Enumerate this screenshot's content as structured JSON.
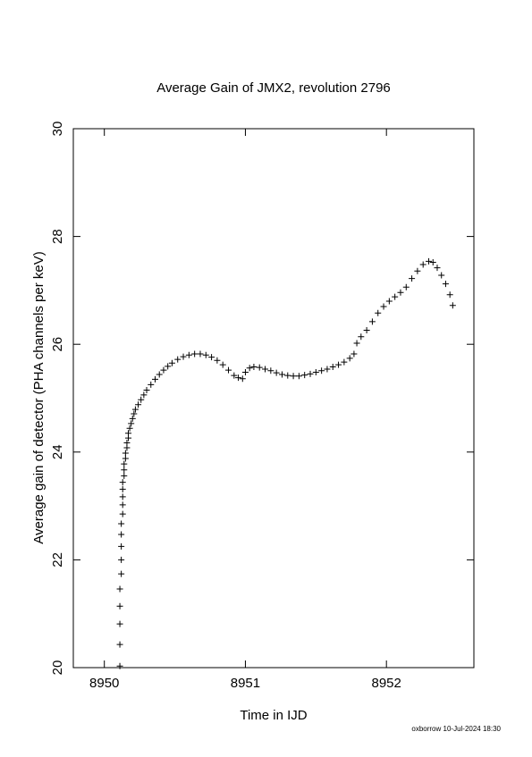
{
  "chart_data": {
    "type": "scatter",
    "title": "Average Gain of JMX2, revolution 2796",
    "x_label": "Time in IJD",
    "y_label": "Average gain of detector (PHA channels per keV)",
    "footer": "oxborrow 10-Jul-2024 18:30",
    "xlim": [
      8949.78,
      8952.62
    ],
    "ylim": [
      20,
      30
    ],
    "xticks": [
      8950,
      8951,
      8952
    ],
    "yticks": [
      20,
      22,
      24,
      26,
      28,
      30
    ],
    "marker": "+",
    "series": [
      {
        "name": "JMX2",
        "color": "#000000",
        "x": [
          8950.11,
          8950.11,
          8950.11,
          8950.11,
          8950.11,
          8950.12,
          8950.12,
          8950.12,
          8950.12,
          8950.12,
          8950.13,
          8950.13,
          8950.13,
          8950.13,
          8950.13,
          8950.14,
          8950.14,
          8950.14,
          8950.15,
          8950.15,
          8950.16,
          8950.16,
          8950.17,
          8950.17,
          8950.18,
          8950.19,
          8950.2,
          8950.21,
          8950.22,
          8950.24,
          8950.26,
          8950.28,
          8950.3,
          8950.33,
          8950.36,
          8950.39,
          8950.42,
          8950.45,
          8950.48,
          8950.52,
          8950.56,
          8950.6,
          8950.64,
          8950.68,
          8950.72,
          8950.76,
          8950.8,
          8950.84,
          8950.88,
          8950.92,
          8950.95,
          8950.98,
          8951.0,
          8951.03,
          8951.06,
          8951.1,
          8951.14,
          8951.18,
          8951.22,
          8951.26,
          8951.3,
          8951.34,
          8951.38,
          8951.42,
          8951.46,
          8951.5,
          8951.54,
          8951.58,
          8951.62,
          8951.66,
          8951.7,
          8951.74,
          8951.77,
          8951.79,
          8951.82,
          8951.86,
          8951.9,
          8951.94,
          8951.98,
          8952.02,
          8952.06,
          8952.1,
          8952.14,
          8952.18,
          8952.22,
          8952.26,
          8952.3,
          8952.33,
          8952.36,
          8952.39,
          8952.42,
          8952.45,
          8952.47
        ],
        "values": [
          20.03,
          20.43,
          20.81,
          21.14,
          21.46,
          21.74,
          22.0,
          22.25,
          22.47,
          22.67,
          22.85,
          23.02,
          23.17,
          23.31,
          23.44,
          23.56,
          23.67,
          23.78,
          23.88,
          23.98,
          24.08,
          24.17,
          24.26,
          24.35,
          24.44,
          24.53,
          24.62,
          24.71,
          24.79,
          24.88,
          24.97,
          25.06,
          25.15,
          25.25,
          25.35,
          25.44,
          25.52,
          25.59,
          25.65,
          25.72,
          25.77,
          25.8,
          25.82,
          25.82,
          25.8,
          25.76,
          25.7,
          25.62,
          25.52,
          25.42,
          25.38,
          25.36,
          25.48,
          25.56,
          25.58,
          25.57,
          25.54,
          25.51,
          25.47,
          25.44,
          25.42,
          25.41,
          25.41,
          25.43,
          25.45,
          25.48,
          25.51,
          25.54,
          25.58,
          25.62,
          25.67,
          25.74,
          25.82,
          26.02,
          26.14,
          26.26,
          26.42,
          26.58,
          26.7,
          26.8,
          26.88,
          26.96,
          27.06,
          27.22,
          27.36,
          27.48,
          27.54,
          27.52,
          27.42,
          27.28,
          27.12,
          26.92,
          26.72
        ]
      }
    ]
  }
}
